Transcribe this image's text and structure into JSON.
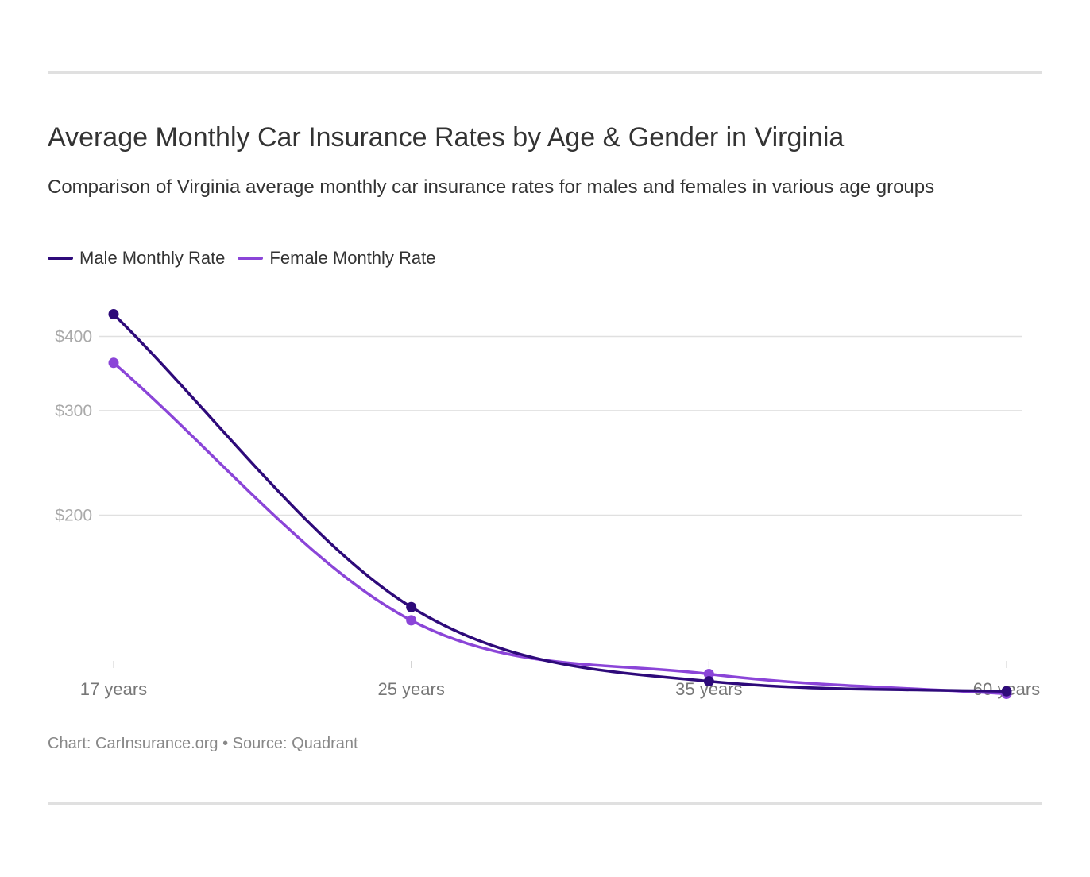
{
  "title": "Average Monthly Car Insurance Rates by Age & Gender in Virginia",
  "subtitle": "Comparison of Virginia average monthly car insurance rates for males and females in various age groups",
  "footer": "Chart: CarInsurance.org • Source: Quadrant",
  "colors": {
    "male": "#2e0a7a",
    "female": "#8b45d8",
    "grid": "#e0e0e0",
    "tick_text": "#aaaaaa",
    "axis_text": "#777777"
  },
  "chart_data": {
    "type": "line",
    "scale": "log",
    "categories": [
      "17 years",
      "25 years",
      "35 years",
      "60 years"
    ],
    "y_ticks": [
      {
        "value": 400,
        "label": "$400"
      },
      {
        "value": 300,
        "label": "$300"
      },
      {
        "value": 200,
        "label": "$200"
      }
    ],
    "ylim": [
      88,
      470
    ],
    "grid": true,
    "legend_position": "top-left",
    "series": [
      {
        "name": "Male Monthly Rate",
        "color": "#2e0a7a",
        "values": [
          436,
          140,
          105,
          101
        ]
      },
      {
        "name": "Female Monthly Rate",
        "color": "#8b45d8",
        "values": [
          361,
          133,
          108,
          100
        ]
      }
    ]
  }
}
